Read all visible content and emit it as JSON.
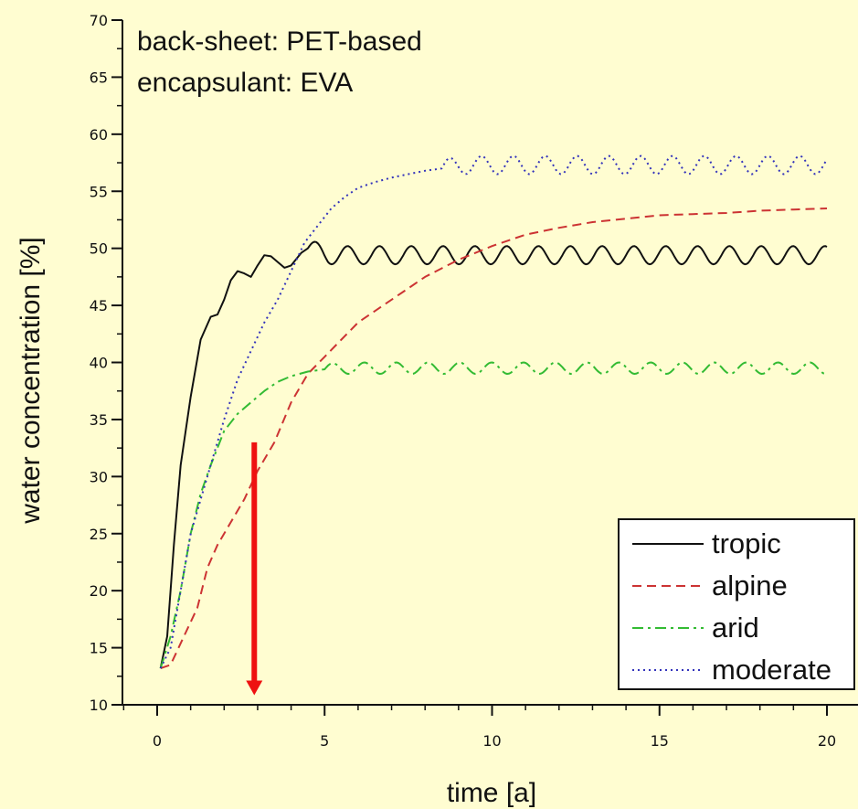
{
  "chart_data": {
    "type": "line",
    "xlabel": "time [a]",
    "ylabel": "water concentration [%]",
    "xlim": [
      -1,
      21
    ],
    "ylim": [
      10,
      70
    ],
    "xticks": [
      0,
      5,
      10,
      15,
      20
    ],
    "yticks": [
      10,
      15,
      20,
      25,
      30,
      35,
      40,
      45,
      50,
      55,
      60,
      65,
      70
    ],
    "annotations": [
      "back-sheet: PET-based",
      "encapsulant: EVA"
    ],
    "legend_position": "bottom-right",
    "grid": false,
    "arrow": {
      "color": "#ee1111",
      "x": 2.9,
      "from_y": 33,
      "to_y": 11
    },
    "series": [
      {
        "name": "tropic",
        "color": "#111111",
        "dash": "solid",
        "x": [
          0.1,
          0.3,
          0.5,
          0.7,
          1.0,
          1.3,
          1.6,
          1.8,
          2.0,
          2.2,
          2.4,
          2.6,
          2.8,
          3.0,
          3.2,
          3.4,
          3.6,
          3.8,
          4.0,
          4.3,
          4.5
        ],
        "y": [
          13.2,
          16,
          24,
          31,
          37,
          42,
          44,
          44.2,
          45.5,
          47.2,
          48,
          47.8,
          47.5,
          48.5,
          49.4,
          49.3,
          48.8,
          48.3,
          48.5,
          49.6,
          50
        ],
        "periodic": {
          "start": 4.5,
          "end": 20,
          "mean": 49.4,
          "amplitude": 0.8,
          "period": 0.95
        }
      },
      {
        "name": "alpine",
        "color": "#cc3333",
        "dash": "dashed",
        "x": [
          0.1,
          0.4,
          0.8,
          1.2,
          1.5,
          1.8,
          2.2,
          2.6,
          3.0,
          3.5,
          4.0,
          4.5,
          5.0,
          5.5,
          6.0,
          6.5,
          7.0,
          7.5,
          8.0,
          9.0,
          10.0,
          11.0,
          12.0,
          13.0,
          14.0,
          15.0,
          16.0,
          17.0,
          18.0,
          19.0,
          20.0
        ],
        "y": [
          13.2,
          13.5,
          16,
          18.5,
          22,
          24,
          26,
          28,
          30.5,
          33,
          36.5,
          39,
          40.5,
          42,
          43.5,
          44.5,
          45.5,
          46.5,
          47.5,
          49,
          50.2,
          51.2,
          51.8,
          52.3,
          52.6,
          52.9,
          53,
          53.1,
          53.3,
          53.4,
          53.5
        ],
        "periodic": null
      },
      {
        "name": "arid",
        "color": "#33bb33",
        "dash": "dashdot",
        "x": [
          0.1,
          0.4,
          0.7,
          1.0,
          1.3,
          1.6,
          2.0,
          2.4,
          2.8,
          3.2,
          3.6,
          4.0,
          4.5,
          5.0
        ],
        "y": [
          13.2,
          16,
          20,
          25,
          28.5,
          31,
          34,
          35.5,
          36.5,
          37.5,
          38.3,
          38.8,
          39.2,
          39.4
        ],
        "periodic": {
          "start": 5.0,
          "end": 20,
          "mean": 39.5,
          "amplitude": 0.5,
          "period": 0.95
        }
      },
      {
        "name": "moderate",
        "color": "#3333bb",
        "dash": "dotted",
        "x": [
          0.1,
          0.4,
          0.7,
          1.0,
          1.3,
          1.6,
          2.0,
          2.4,
          2.8,
          3.2,
          3.6,
          4.0,
          4.4,
          4.8,
          5.2,
          5.6,
          6.0,
          6.5,
          7.0,
          7.5,
          8.0,
          8.5
        ],
        "y": [
          13.2,
          15,
          20,
          25,
          28,
          31,
          35,
          38.5,
          41,
          43.5,
          45.5,
          48,
          50.5,
          52,
          53.5,
          54.5,
          55.3,
          55.8,
          56.2,
          56.5,
          56.8,
          57
        ],
        "periodic": {
          "start": 8.5,
          "end": 20,
          "mean": 57.3,
          "amplitude": 0.8,
          "period": 0.95
        }
      }
    ]
  }
}
